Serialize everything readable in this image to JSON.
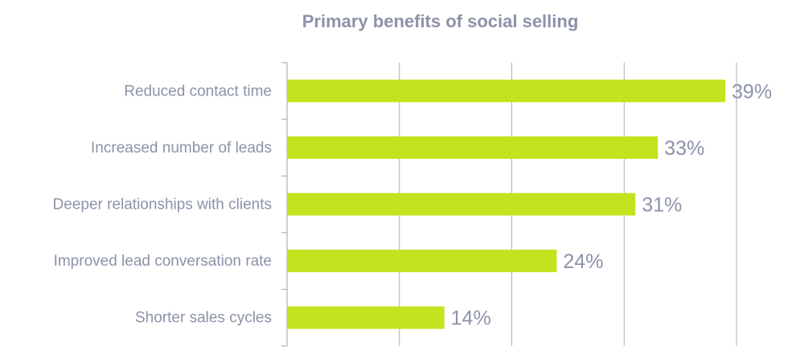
{
  "chart_data": {
    "type": "bar",
    "orientation": "horizontal",
    "title": "Primary benefits of social selling",
    "categories": [
      "Reduced contact time",
      "Increased number of leads",
      "Deeper relationships with clients",
      "Improved lead conversation rate",
      "Shorter sales cycles"
    ],
    "values": [
      39,
      33,
      31,
      24,
      14
    ],
    "data_labels": [
      "39%",
      "33%",
      "31%",
      "24%",
      "14%"
    ],
    "xlim": [
      0,
      40
    ],
    "x_gridlines": [
      10,
      20,
      30,
      40
    ],
    "xlabel": "",
    "ylabel": "",
    "grid": true,
    "legend": "none"
  },
  "colors": {
    "bar": "#c5e21e",
    "text": "#8c92a8",
    "grid": "#a9adbc",
    "axis": "#9ea2b2"
  }
}
